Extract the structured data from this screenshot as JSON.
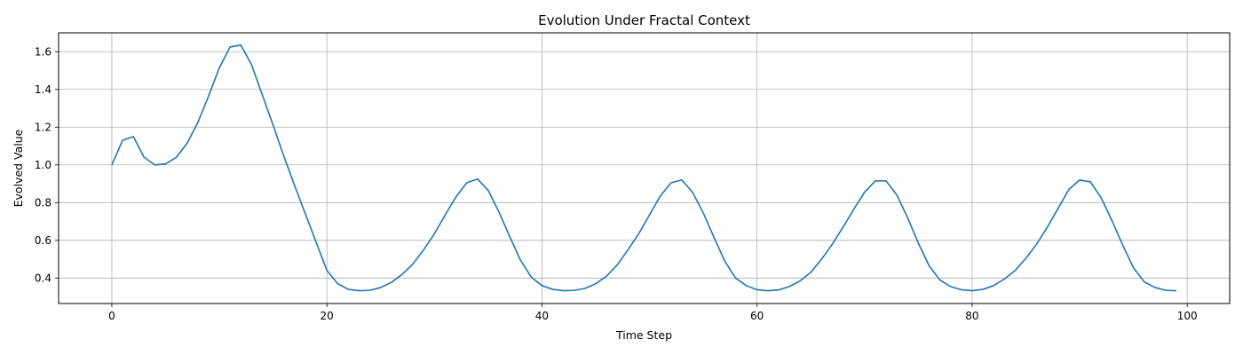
{
  "chart_data": {
    "type": "line",
    "title": "Evolution Under Fractal Context",
    "xlabel": "Time Step",
    "ylabel": "Evolved Value",
    "xlim": [
      -4.95,
      103.95
    ],
    "ylim": [
      0.265,
      1.7
    ],
    "xticks": [
      0,
      20,
      40,
      60,
      80,
      100
    ],
    "xtick_labels": [
      "0",
      "20",
      "40",
      "60",
      "80",
      "100"
    ],
    "yticks": [
      0.4,
      0.6,
      0.8,
      1.0,
      1.2,
      1.4,
      1.6
    ],
    "ytick_labels": [
      "0.4",
      "0.6",
      "0.8",
      "1.0",
      "1.2",
      "1.4",
      "1.6"
    ],
    "grid": true,
    "series": [
      {
        "color": "#1f77b4",
        "x": [
          0,
          1,
          2,
          3,
          4,
          5,
          6,
          7,
          8,
          9,
          10,
          11,
          12,
          13,
          14,
          15,
          16,
          17,
          18,
          19,
          20,
          21,
          22,
          23,
          24,
          25,
          26,
          27,
          28,
          29,
          30,
          31,
          32,
          33,
          34,
          35,
          36,
          37,
          38,
          39,
          40,
          41,
          42,
          43,
          44,
          45,
          46,
          47,
          48,
          49,
          50,
          51,
          52,
          53,
          54,
          55,
          56,
          57,
          58,
          59,
          60,
          61,
          62,
          63,
          64,
          65,
          66,
          67,
          68,
          69,
          70,
          71,
          72,
          73,
          74,
          75,
          76,
          77,
          78,
          79,
          80,
          81,
          82,
          83,
          84,
          85,
          86,
          87,
          88,
          89,
          90,
          91,
          92,
          93,
          94,
          95,
          96,
          97,
          98,
          99
        ],
        "y": [
          1.0,
          1.13,
          1.15,
          1.04,
          1.0,
          1.005,
          1.04,
          1.115,
          1.225,
          1.365,
          1.515,
          1.625,
          1.635,
          1.53,
          1.37,
          1.21,
          1.045,
          0.89,
          0.74,
          0.59,
          0.44,
          0.37,
          0.34,
          0.333,
          0.335,
          0.35,
          0.377,
          0.42,
          0.475,
          0.55,
          0.635,
          0.735,
          0.83,
          0.905,
          0.925,
          0.865,
          0.75,
          0.62,
          0.495,
          0.405,
          0.36,
          0.34,
          0.333,
          0.335,
          0.345,
          0.37,
          0.41,
          0.47,
          0.55,
          0.635,
          0.735,
          0.835,
          0.905,
          0.92,
          0.855,
          0.745,
          0.615,
          0.49,
          0.4,
          0.36,
          0.338,
          0.333,
          0.337,
          0.355,
          0.385,
          0.43,
          0.5,
          0.58,
          0.67,
          0.765,
          0.855,
          0.915,
          0.915,
          0.84,
          0.72,
          0.585,
          0.465,
          0.39,
          0.355,
          0.338,
          0.333,
          0.34,
          0.36,
          0.395,
          0.44,
          0.505,
          0.58,
          0.67,
          0.77,
          0.87,
          0.92,
          0.91,
          0.825,
          0.705,
          0.575,
          0.455,
          0.38,
          0.35,
          0.335,
          0.333
        ]
      }
    ]
  }
}
